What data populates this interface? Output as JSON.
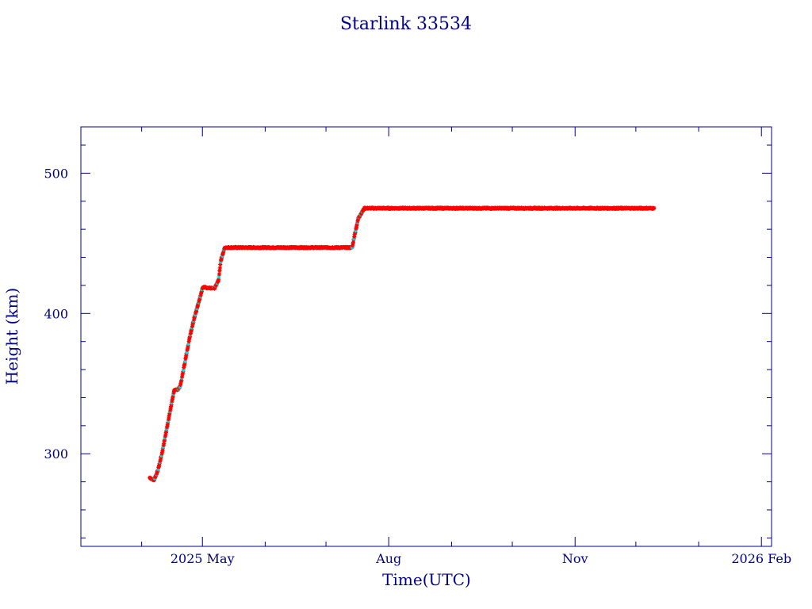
{
  "chart_data": {
    "type": "scatter",
    "title": "Starlink 33534",
    "xlabel": "Time(UTC)",
    "ylabel": "Height (km)",
    "x_tick_labels": [
      "2025 May",
      "Aug",
      "Nov",
      "2026 Feb"
    ],
    "x_tick_dates": [
      "2025-05-01",
      "2025-08-01",
      "2025-11-01",
      "2026-02-01"
    ],
    "y_ticks": [
      300,
      400,
      500
    ],
    "xlim": [
      "2025-03-02",
      "2026-02-06"
    ],
    "ylim": [
      234,
      533
    ],
    "grid": false,
    "colors": {
      "frame": "#00008b",
      "points": "#ff0000",
      "secondary_points": "#00e5e5",
      "line": "#000000"
    },
    "series": [
      {
        "x": [
          "2025-04-05",
          "2025-04-07",
          "2025-04-09",
          "2025-04-11",
          "2025-04-13",
          "2025-04-15",
          "2025-04-17",
          "2025-04-19",
          "2025-04-20",
          "2025-04-21",
          "2025-04-23",
          "2025-04-25",
          "2025-04-27",
          "2025-04-29",
          "2025-05-01",
          "2025-05-02",
          "2025-05-03",
          "2025-05-05",
          "2025-05-07",
          "2025-05-09",
          "2025-05-10",
          "2025-05-12",
          "2025-05-14",
          "2025-05-20",
          "2025-06-01",
          "2025-06-15",
          "2025-07-01",
          "2025-07-12",
          "2025-07-14",
          "2025-07-15",
          "2025-07-17",
          "2025-07-20",
          "2025-08-01",
          "2025-08-15",
          "2025-09-01",
          "2025-09-15",
          "2025-10-01",
          "2025-10-15",
          "2025-11-01",
          "2025-11-15",
          "2025-12-01",
          "2025-12-10"
        ],
        "y": [
          283,
          281,
          288,
          300,
          315,
          330,
          345,
          346,
          348,
          355,
          370,
          385,
          397,
          407,
          418,
          419,
          418,
          418,
          418,
          424,
          437,
          447,
          447,
          447,
          447,
          447,
          447,
          447,
          447,
          455,
          468,
          475,
          475,
          475,
          475,
          475,
          475,
          475,
          475,
          475,
          475,
          475
        ]
      }
    ]
  }
}
